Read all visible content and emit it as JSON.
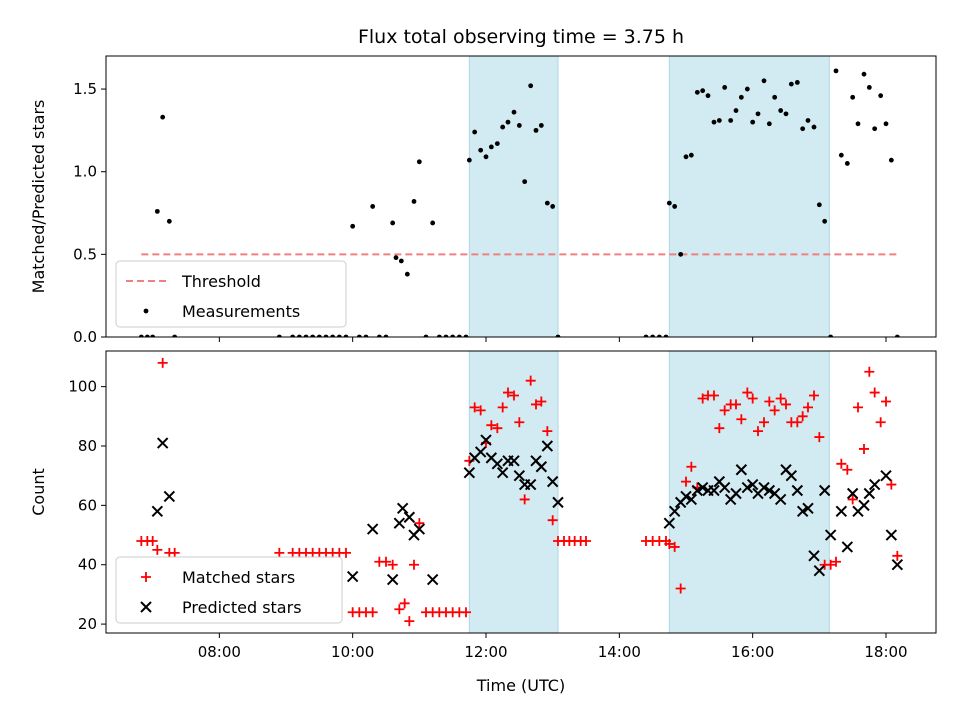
{
  "chart_data": {
    "type": "scatter",
    "title": "Flux total observing time = 3.75 h",
    "xlabel": "Time (UTC)",
    "x_unit": "hours (UTC)",
    "xlim": [
      6.3,
      18.75
    ],
    "x_ticks": [
      {
        "value": 8,
        "label": "08:00"
      },
      {
        "value": 10,
        "label": "10:00"
      },
      {
        "value": 12,
        "label": "12:00"
      },
      {
        "value": 14,
        "label": "14:00"
      },
      {
        "value": 16,
        "label": "16:00"
      },
      {
        "value": 18,
        "label": "18:00"
      }
    ],
    "shaded_regions": [
      [
        11.75,
        13.08
      ],
      [
        14.75,
        17.15
      ]
    ],
    "shade_color": "#add8e6",
    "panels": [
      {
        "id": "ratio",
        "ylabel": "Matched/Predicted stars",
        "ylim": [
          0,
          1.7
        ],
        "y_ticks": [
          {
            "value": 0,
            "label": "0.0"
          },
          {
            "value": 0.5,
            "label": "0.5"
          },
          {
            "value": 1.0,
            "label": "1.0"
          },
          {
            "value": 1.5,
            "label": "1.5"
          }
        ],
        "legend": {
          "placement": "lower-left",
          "entries": [
            "Threshold",
            "Measurements"
          ]
        },
        "threshold": {
          "name": "Threshold",
          "value": 0.5,
          "x_range": [
            6.83,
            18.2
          ],
          "color": "#f08080"
        },
        "series": [
          {
            "name": "Measurements",
            "marker": "dot",
            "color": "#000000",
            "x": [
              6.83,
              6.92,
              7.0,
              7.07,
              7.15,
              7.25,
              7.33,
              8.9,
              9.1,
              9.2,
              9.3,
              9.4,
              9.5,
              9.6,
              9.7,
              9.8,
              9.9,
              10.0,
              10.1,
              10.2,
              10.3,
              10.4,
              10.5,
              10.6,
              10.65,
              10.73,
              10.82,
              10.92,
              11.0,
              11.1,
              11.2,
              11.3,
              11.4,
              11.5,
              11.6,
              11.7,
              11.75,
              11.83,
              11.92,
              12.0,
              12.08,
              12.17,
              12.25,
              12.33,
              12.42,
              12.5,
              12.58,
              12.67,
              12.75,
              12.83,
              12.92,
              13.0,
              13.08,
              14.4,
              14.5,
              14.6,
              14.7,
              14.75,
              14.83,
              14.92,
              15.0,
              15.08,
              15.17,
              15.25,
              15.33,
              15.42,
              15.5,
              15.58,
              15.67,
              15.75,
              15.83,
              15.92,
              16.0,
              16.08,
              16.17,
              16.25,
              16.33,
              16.42,
              16.5,
              16.58,
              16.67,
              16.75,
              16.83,
              16.92,
              17.0,
              17.08,
              17.17,
              17.25,
              17.33,
              17.42,
              17.5,
              17.58,
              17.67,
              17.75,
              17.83,
              17.92,
              18.0,
              18.08,
              18.17
            ],
            "y": [
              0.0,
              0.0,
              0.0,
              0.76,
              1.33,
              0.7,
              0.0,
              0.0,
              0.0,
              0.0,
              0.0,
              0.0,
              0.0,
              0.0,
              0.0,
              0.0,
              0.0,
              0.67,
              0.0,
              0.0,
              0.79,
              0.0,
              0.0,
              0.69,
              0.48,
              0.46,
              0.38,
              0.82,
              1.06,
              0.0,
              0.69,
              0.0,
              0.0,
              0.0,
              0.0,
              0.0,
              1.07,
              1.24,
              1.13,
              1.09,
              1.15,
              1.17,
              1.27,
              1.3,
              1.36,
              1.28,
              0.94,
              1.52,
              1.25,
              1.28,
              0.81,
              0.79,
              0.0,
              0.0,
              0.0,
              0.0,
              0.0,
              0.81,
              0.79,
              0.5,
              1.09,
              1.1,
              1.48,
              1.49,
              1.46,
              1.3,
              1.31,
              1.51,
              1.31,
              1.37,
              1.45,
              1.5,
              1.3,
              1.35,
              1.55,
              1.29,
              1.45,
              1.37,
              1.35,
              1.53,
              1.54,
              1.26,
              1.31,
              1.27,
              0.8,
              0.7,
              0.0,
              1.61,
              1.1,
              1.05,
              1.45,
              1.29,
              1.59,
              1.51,
              1.26,
              1.46,
              1.29,
              1.07,
              0.0
            ]
          }
        ]
      },
      {
        "id": "counts",
        "ylabel": "Count",
        "ylim": [
          17,
          112
        ],
        "y_ticks": [
          {
            "value": 20,
            "label": "20"
          },
          {
            "value": 40,
            "label": "40"
          },
          {
            "value": 60,
            "label": "60"
          },
          {
            "value": 80,
            "label": "80"
          },
          {
            "value": 100,
            "label": "100"
          }
        ],
        "legend": {
          "placement": "lower-left",
          "entries": [
            "Matched stars",
            "Predicted stars"
          ]
        },
        "series": [
          {
            "name": "Matched stars",
            "marker": "plus",
            "color": "#ff0000",
            "x": [
              6.83,
              6.92,
              7.0,
              7.07,
              7.15,
              7.25,
              7.33,
              8.9,
              9.1,
              9.2,
              9.3,
              9.4,
              9.5,
              9.6,
              9.7,
              9.8,
              9.9,
              10.0,
              10.1,
              10.2,
              10.3,
              10.4,
              10.5,
              10.6,
              10.7,
              10.78,
              10.85,
              10.92,
              11.0,
              11.1,
              11.2,
              11.3,
              11.4,
              11.5,
              11.6,
              11.7,
              11.75,
              11.83,
              11.92,
              12.0,
              12.08,
              12.17,
              12.25,
              12.33,
              12.42,
              12.5,
              12.58,
              12.67,
              12.75,
              12.83,
              12.92,
              13.0,
              13.08,
              13.17,
              13.25,
              13.33,
              13.42,
              13.5,
              14.4,
              14.5,
              14.6,
              14.7,
              14.75,
              14.83,
              14.92,
              15.0,
              15.08,
              15.17,
              15.25,
              15.33,
              15.42,
              15.5,
              15.58,
              15.67,
              15.75,
              15.83,
              15.92,
              16.0,
              16.08,
              16.17,
              16.25,
              16.33,
              16.42,
              16.5,
              16.58,
              16.67,
              16.75,
              16.83,
              16.92,
              17.0,
              17.08,
              17.17,
              17.25,
              17.33,
              17.42,
              17.5,
              17.58,
              17.67,
              17.75,
              17.83,
              17.92,
              18.0,
              18.08,
              18.17
            ],
            "y": [
              48,
              48,
              48,
              45,
              108,
              44,
              44,
              44,
              44,
              44,
              44,
              44,
              44,
              44,
              44,
              44,
              44,
              24,
              24,
              24,
              24,
              41,
              41,
              40,
              25,
              27,
              21,
              40,
              54,
              24,
              24,
              24,
              24,
              24,
              24,
              24,
              75,
              93,
              92,
              81,
              87,
              86,
              93,
              98,
              97,
              88,
              62,
              102,
              94,
              95,
              85,
              55,
              48,
              48,
              48,
              48,
              48,
              48,
              48,
              48,
              48,
              48,
              47,
              46,
              32,
              68,
              73,
              66,
              96,
              97,
              97,
              86,
              92,
              94,
              94,
              89,
              98,
              96,
              85,
              88,
              95,
              92,
              96,
              94,
              88,
              88,
              90,
              93,
              97,
              83,
              40,
              40,
              41,
              74,
              72,
              62,
              93,
              79,
              105,
              98,
              88,
              95,
              67,
              43
            ]
          },
          {
            "name": "Predicted stars",
            "marker": "x",
            "color": "#000000",
            "x": [
              7.07,
              7.15,
              7.25,
              10.0,
              10.3,
              10.6,
              10.7,
              10.75,
              10.85,
              10.92,
              11.0,
              11.2,
              11.75,
              11.83,
              11.92,
              12.0,
              12.08,
              12.17,
              12.25,
              12.33,
              12.42,
              12.5,
              12.58,
              12.67,
              12.75,
              12.83,
              12.92,
              13.0,
              13.08,
              14.75,
              14.83,
              14.92,
              15.0,
              15.08,
              15.17,
              15.25,
              15.33,
              15.42,
              15.5,
              15.58,
              15.67,
              15.75,
              15.83,
              15.92,
              16.0,
              16.08,
              16.17,
              16.25,
              16.33,
              16.42,
              16.5,
              16.58,
              16.67,
              16.75,
              16.83,
              16.92,
              17.0,
              17.08,
              17.17,
              17.33,
              17.42,
              17.5,
              17.58,
              17.67,
              17.75,
              17.83,
              18.0,
              18.08,
              18.17
            ],
            "y": [
              58,
              81,
              63,
              36,
              52,
              35,
              54,
              59,
              56,
              50,
              52,
              35,
              71,
              76,
              78,
              82,
              76,
              74,
              71,
              75,
              75,
              70,
              67,
              67,
              75,
              73,
              80,
              68,
              61,
              54,
              58,
              61,
              63,
              62,
              65,
              66,
              65,
              65,
              68,
              66,
              62,
              64,
              72,
              66,
              67,
              64,
              66,
              65,
              64,
              62,
              72,
              70,
              65,
              58,
              59,
              43,
              38,
              65,
              50,
              58,
              46,
              64,
              58,
              60,
              64,
              67,
              70,
              50,
              40
            ]
          }
        ]
      }
    ]
  }
}
